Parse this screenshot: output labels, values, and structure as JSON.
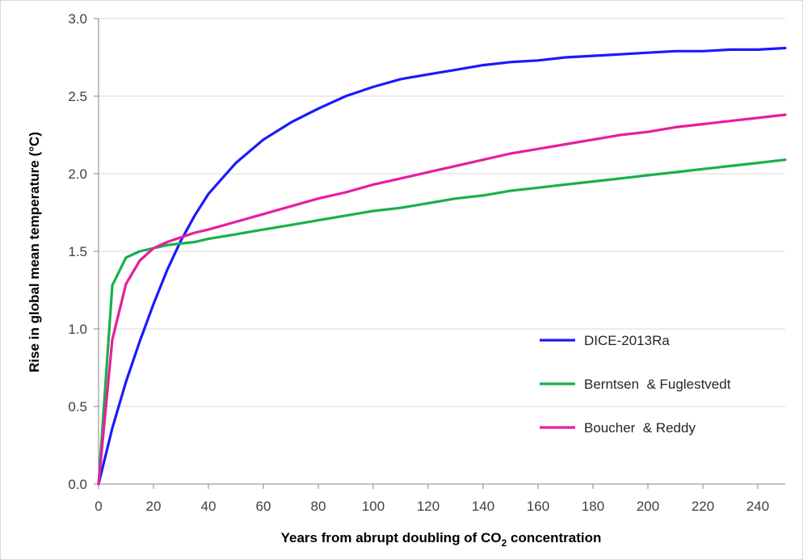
{
  "chart_data": {
    "type": "line",
    "title": "",
    "xlabel_prefix": "Years from abrupt doubling of CO",
    "xlabel_sub": "2",
    "xlabel_suffix": " concentration",
    "ylabel": "Rise in global mean temperature (°C)",
    "xlim": [
      0,
      250
    ],
    "ylim": [
      0,
      3.0
    ],
    "x_ticks": [
      0,
      20,
      40,
      60,
      80,
      100,
      120,
      140,
      160,
      180,
      200,
      220,
      240
    ],
    "y_ticks": [
      0.0,
      0.5,
      1.0,
      1.5,
      2.0,
      2.5,
      3.0
    ],
    "y_tick_labels": [
      "0.0",
      "0.5",
      "1.0",
      "1.5",
      "2.0",
      "2.5",
      "3.0"
    ],
    "grid": "horizontal",
    "legend_position": "bottom-right",
    "x": [
      0,
      5,
      10,
      15,
      20,
      25,
      30,
      35,
      40,
      50,
      60,
      70,
      80,
      90,
      100,
      110,
      120,
      130,
      140,
      150,
      160,
      170,
      180,
      190,
      200,
      210,
      220,
      230,
      240,
      250
    ],
    "series": [
      {
        "name": "DICE-2013Ra",
        "color": "#1a1aff",
        "values": [
          0.0,
          0.36,
          0.66,
          0.92,
          1.16,
          1.38,
          1.57,
          1.73,
          1.87,
          2.07,
          2.22,
          2.33,
          2.42,
          2.5,
          2.56,
          2.61,
          2.64,
          2.67,
          2.7,
          2.72,
          2.73,
          2.75,
          2.76,
          2.77,
          2.78,
          2.79,
          2.79,
          2.8,
          2.8,
          2.81
        ]
      },
      {
        "name": "Berntsen  & Fuglestvedt",
        "color": "#18b04c",
        "values": [
          0.0,
          1.28,
          1.46,
          1.5,
          1.52,
          1.54,
          1.55,
          1.56,
          1.58,
          1.61,
          1.64,
          1.67,
          1.7,
          1.73,
          1.76,
          1.78,
          1.81,
          1.84,
          1.86,
          1.89,
          1.91,
          1.93,
          1.95,
          1.97,
          1.99,
          2.01,
          2.03,
          2.05,
          2.07,
          2.09
        ]
      },
      {
        "name": "Boucher  & Reddy",
        "color": "#e61e9e",
        "values": [
          0.0,
          0.93,
          1.29,
          1.44,
          1.52,
          1.56,
          1.59,
          1.62,
          1.64,
          1.69,
          1.74,
          1.79,
          1.84,
          1.88,
          1.93,
          1.97,
          2.01,
          2.05,
          2.09,
          2.13,
          2.16,
          2.19,
          2.22,
          2.25,
          2.27,
          2.3,
          2.32,
          2.34,
          2.36,
          2.38
        ]
      }
    ]
  }
}
